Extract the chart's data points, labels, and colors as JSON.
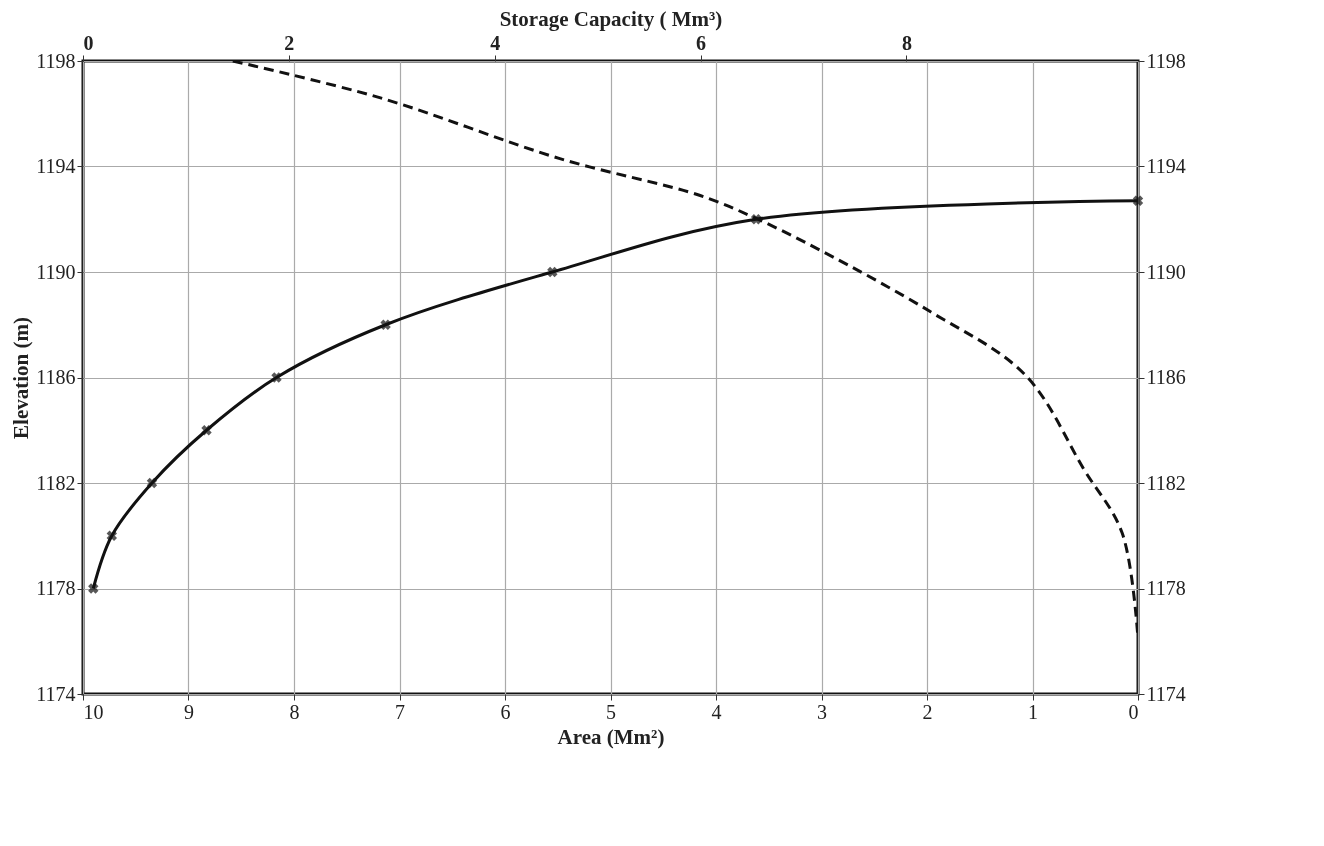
{
  "chart_data": {
    "type": "line",
    "xlabel": "Area (Mm²)",
    "x2label": "Storage Capacity ( Mm³)",
    "ylabel": "Elevation (m)",
    "xlim": [
      10,
      0
    ],
    "xticks": [
      10,
      9,
      8,
      7,
      6,
      5,
      4,
      3,
      2,
      1,
      0
    ],
    "x2lim": [
      0,
      10.25
    ],
    "x2ticks": [
      0,
      2,
      4,
      6,
      8
    ],
    "ylim": [
      1174,
      1198
    ],
    "yticks": [
      1174,
      1178,
      1182,
      1186,
      1190,
      1194,
      1198
    ],
    "y2lim": [
      1174,
      1198
    ],
    "y2ticks": [
      1174,
      1178,
      1182,
      1186,
      1190,
      1194,
      1198
    ],
    "grid": true,
    "series": [
      {
        "color": "#111111",
        "line_style": "dashed",
        "marker": "none",
        "x": [
          8.58,
          7.18,
          5.48,
          4.15,
          3.63,
          3.0,
          1.97,
          1.07,
          0.51,
          0.15,
          0
        ],
        "values": [
          1198,
          1196.6,
          1194.3,
          1192.9,
          1192.05,
          1190.8,
          1188.5,
          1186.1,
          1182.5,
          1180.1,
          1176.1
        ]
      },
      {
        "color": "#111111",
        "line_style": "solid",
        "marker": "cross",
        "axis": "x2",
        "x": [
          0.1,
          0.28,
          0.67,
          1.2,
          1.88,
          2.94,
          4.56,
          6.54,
          10.25
        ],
        "values": [
          1178,
          1180,
          1182,
          1184,
          1186,
          1188,
          1190,
          1192,
          1192.7
        ]
      }
    ]
  }
}
